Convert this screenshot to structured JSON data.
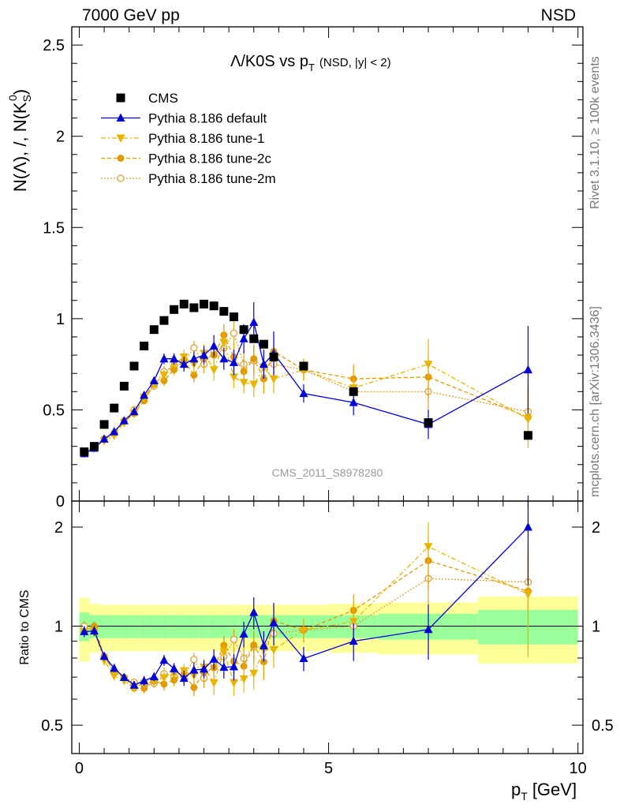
{
  "header": {
    "left": "7000 GeV pp",
    "right": "NSD",
    "side_rivet": "Rivet 3.1.10, ≥ 100k events",
    "side_mcplots": "mcplots.cern.ch [arXiv:1306.3436]"
  },
  "chart_data": {
    "type": "scatter",
    "title": "Λ/K0S vs p",
    "title_sub": "T",
    "title_extra": "(NSD, |y| < 2)",
    "watermark": "CMS_2011_S8978280",
    "xlabel": "p",
    "xlabel_sub": "T",
    "xlabel_unit": "[GeV]",
    "ylabel": "N(Λ), /, N(K",
    "ylabel_sub": "S",
    "ylabel_sup": "0",
    "ylabel_end": ")",
    "ratio_ylabel": "Ratio to CMS",
    "xlim": [
      -0.15,
      10.1
    ],
    "ylim": [
      0,
      2.6
    ],
    "ratio_ylim": [
      0.41,
      2.4
    ],
    "x_ticks": [
      0,
      5,
      10
    ],
    "x_tick_labels": [
      "0",
      "5",
      "10"
    ],
    "y_ticks": [
      0,
      0.5,
      1,
      1.5,
      2,
      2.5
    ],
    "y_tick_labels": [
      "0",
      "0.5",
      "1",
      "1.5",
      "2",
      "2.5"
    ],
    "ratio_ticks": [
      0.5,
      1,
      2
    ],
    "ratio_tick_labels": [
      "0.5",
      "1",
      "2"
    ],
    "legend": [
      {
        "key": "cms",
        "label": "CMS"
      },
      {
        "key": "default",
        "label": "Pythia 8.186 default"
      },
      {
        "key": "tune1",
        "label": "Pythia 8.186 tune-1"
      },
      {
        "key": "tune2c",
        "label": "Pythia 8.186 tune-2c"
      },
      {
        "key": "tune2m",
        "label": "Pythia 8.186 tune-2m"
      }
    ],
    "colors": {
      "cms": "#000000",
      "default": "#0000dd",
      "tune1": "#e8b400",
      "tune2c": "#e09a00",
      "tune2m": "#e0a030",
      "band_inner": "#99ff99",
      "band_outer": "#ffff99"
    },
    "cms_band": {
      "x_edges": [
        0.0,
        0.2,
        0.4,
        0.6,
        0.8,
        1.0,
        1.2,
        1.4,
        1.6,
        1.8,
        2.0,
        2.2,
        2.4,
        2.6,
        2.8,
        3.0,
        3.2,
        3.4,
        3.6,
        3.8,
        4.0,
        5.0,
        6.0,
        8.0,
        10.0
      ],
      "inner": [
        0.1,
        0.08,
        0.08,
        0.08,
        0.08,
        0.08,
        0.08,
        0.08,
        0.08,
        0.08,
        0.08,
        0.08,
        0.08,
        0.08,
        0.08,
        0.08,
        0.08,
        0.08,
        0.08,
        0.08,
        0.08,
        0.08,
        0.09,
        0.12
      ],
      "outer": [
        0.22,
        0.17,
        0.16,
        0.16,
        0.16,
        0.16,
        0.16,
        0.16,
        0.16,
        0.16,
        0.16,
        0.16,
        0.16,
        0.16,
        0.16,
        0.16,
        0.16,
        0.16,
        0.16,
        0.16,
        0.16,
        0.17,
        0.18,
        0.23
      ]
    },
    "series": [
      {
        "key": "cms",
        "name": "CMS",
        "x": [
          0.1,
          0.3,
          0.5,
          0.7,
          0.9,
          1.1,
          1.3,
          1.5,
          1.7,
          1.9,
          2.1,
          2.3,
          2.5,
          2.7,
          2.9,
          3.1,
          3.3,
          3.5,
          3.7,
          3.9,
          4.5,
          5.5,
          7.0,
          9.0
        ],
        "y": [
          0.27,
          0.3,
          0.42,
          0.51,
          0.63,
          0.74,
          0.85,
          0.94,
          0.99,
          1.05,
          1.08,
          1.06,
          1.08,
          1.07,
          1.04,
          1.01,
          0.94,
          0.89,
          0.86,
          0.79,
          0.74,
          0.6,
          0.43,
          0.36
        ],
        "err": [
          0,
          0,
          0,
          0,
          0,
          0,
          0,
          0,
          0,
          0,
          0,
          0,
          0,
          0,
          0,
          0,
          0,
          0,
          0,
          0,
          0,
          0,
          0,
          0
        ]
      },
      {
        "key": "default",
        "name": "Pythia 8.186 default",
        "x": [
          0.1,
          0.3,
          0.5,
          0.7,
          0.9,
          1.1,
          1.3,
          1.5,
          1.7,
          1.9,
          2.1,
          2.3,
          2.5,
          2.7,
          2.9,
          3.1,
          3.3,
          3.5,
          3.7,
          3.9,
          4.5,
          5.5,
          7.0,
          9.0
        ],
        "y": [
          0.26,
          0.29,
          0.34,
          0.38,
          0.44,
          0.49,
          0.58,
          0.66,
          0.78,
          0.78,
          0.75,
          0.78,
          0.8,
          0.85,
          0.78,
          0.76,
          0.89,
          0.98,
          0.75,
          0.81,
          0.59,
          0.54,
          0.42,
          0.72
        ],
        "err": [
          0.01,
          0.01,
          0.01,
          0.01,
          0.01,
          0.01,
          0.02,
          0.02,
          0.03,
          0.03,
          0.04,
          0.04,
          0.05,
          0.06,
          0.06,
          0.07,
          0.08,
          0.11,
          0.08,
          0.12,
          0.05,
          0.07,
          0.08,
          0.24
        ]
      },
      {
        "key": "tune1",
        "name": "Pythia 8.186 tune-1",
        "x": [
          0.1,
          0.3,
          0.5,
          0.7,
          0.9,
          1.1,
          1.3,
          1.5,
          1.7,
          1.9,
          2.1,
          2.3,
          2.5,
          2.7,
          2.9,
          3.1,
          3.3,
          3.5,
          3.7,
          3.9,
          4.5,
          5.5,
          7.0,
          9.0
        ],
        "y": [
          0.26,
          0.29,
          0.33,
          0.36,
          0.43,
          0.48,
          0.57,
          0.64,
          0.69,
          0.75,
          0.79,
          0.75,
          0.81,
          0.72,
          0.87,
          0.68,
          0.65,
          0.64,
          0.73,
          0.67,
          0.72,
          0.62,
          0.75,
          0.45
        ],
        "err": [
          0.01,
          0.01,
          0.01,
          0.01,
          0.01,
          0.01,
          0.02,
          0.02,
          0.03,
          0.03,
          0.04,
          0.05,
          0.05,
          0.06,
          0.07,
          0.06,
          0.06,
          0.07,
          0.08,
          0.08,
          0.06,
          0.09,
          0.14,
          0.16
        ]
      },
      {
        "key": "tune2c",
        "name": "Pythia 8.186 tune-2c",
        "x": [
          0.1,
          0.3,
          0.5,
          0.7,
          0.9,
          1.1,
          1.3,
          1.5,
          1.7,
          1.9,
          2.1,
          2.3,
          2.5,
          2.7,
          2.9,
          3.1,
          3.3,
          3.5,
          3.7,
          3.9,
          4.5,
          5.5,
          7.0,
          9.0
        ],
        "y": [
          0.26,
          0.3,
          0.34,
          0.37,
          0.44,
          0.48,
          0.55,
          0.64,
          0.66,
          0.72,
          0.77,
          0.69,
          0.78,
          0.8,
          0.91,
          0.79,
          0.71,
          0.78,
          0.67,
          0.82,
          0.72,
          0.67,
          0.68,
          0.46
        ],
        "err": [
          0.01,
          0.01,
          0.01,
          0.01,
          0.01,
          0.01,
          0.02,
          0.02,
          0.03,
          0.03,
          0.04,
          0.04,
          0.05,
          0.06,
          0.06,
          0.07,
          0.07,
          0.08,
          0.08,
          0.09,
          0.06,
          0.08,
          0.12,
          0.16
        ]
      },
      {
        "key": "tune2m",
        "name": "Pythia 8.186 tune-2m",
        "x": [
          0.1,
          0.3,
          0.5,
          0.7,
          0.9,
          1.1,
          1.3,
          1.5,
          1.7,
          1.9,
          2.1,
          2.3,
          2.5,
          2.7,
          2.9,
          3.1,
          3.3,
          3.5,
          3.7,
          3.9,
          4.5,
          5.5,
          7.0,
          9.0
        ],
        "y": [
          0.27,
          0.29,
          0.34,
          0.37,
          0.44,
          0.5,
          0.57,
          0.63,
          0.71,
          0.74,
          0.76,
          0.84,
          0.75,
          0.82,
          0.84,
          0.92,
          0.75,
          0.77,
          0.74,
          0.75,
          0.72,
          0.6,
          0.6,
          0.49
        ],
        "err": [
          0.01,
          0.01,
          0.01,
          0.01,
          0.01,
          0.01,
          0.02,
          0.02,
          0.03,
          0.03,
          0.04,
          0.04,
          0.05,
          0.05,
          0.06,
          0.07,
          0.07,
          0.08,
          0.08,
          0.09,
          0.06,
          0.08,
          0.11,
          0.15
        ]
      }
    ]
  }
}
